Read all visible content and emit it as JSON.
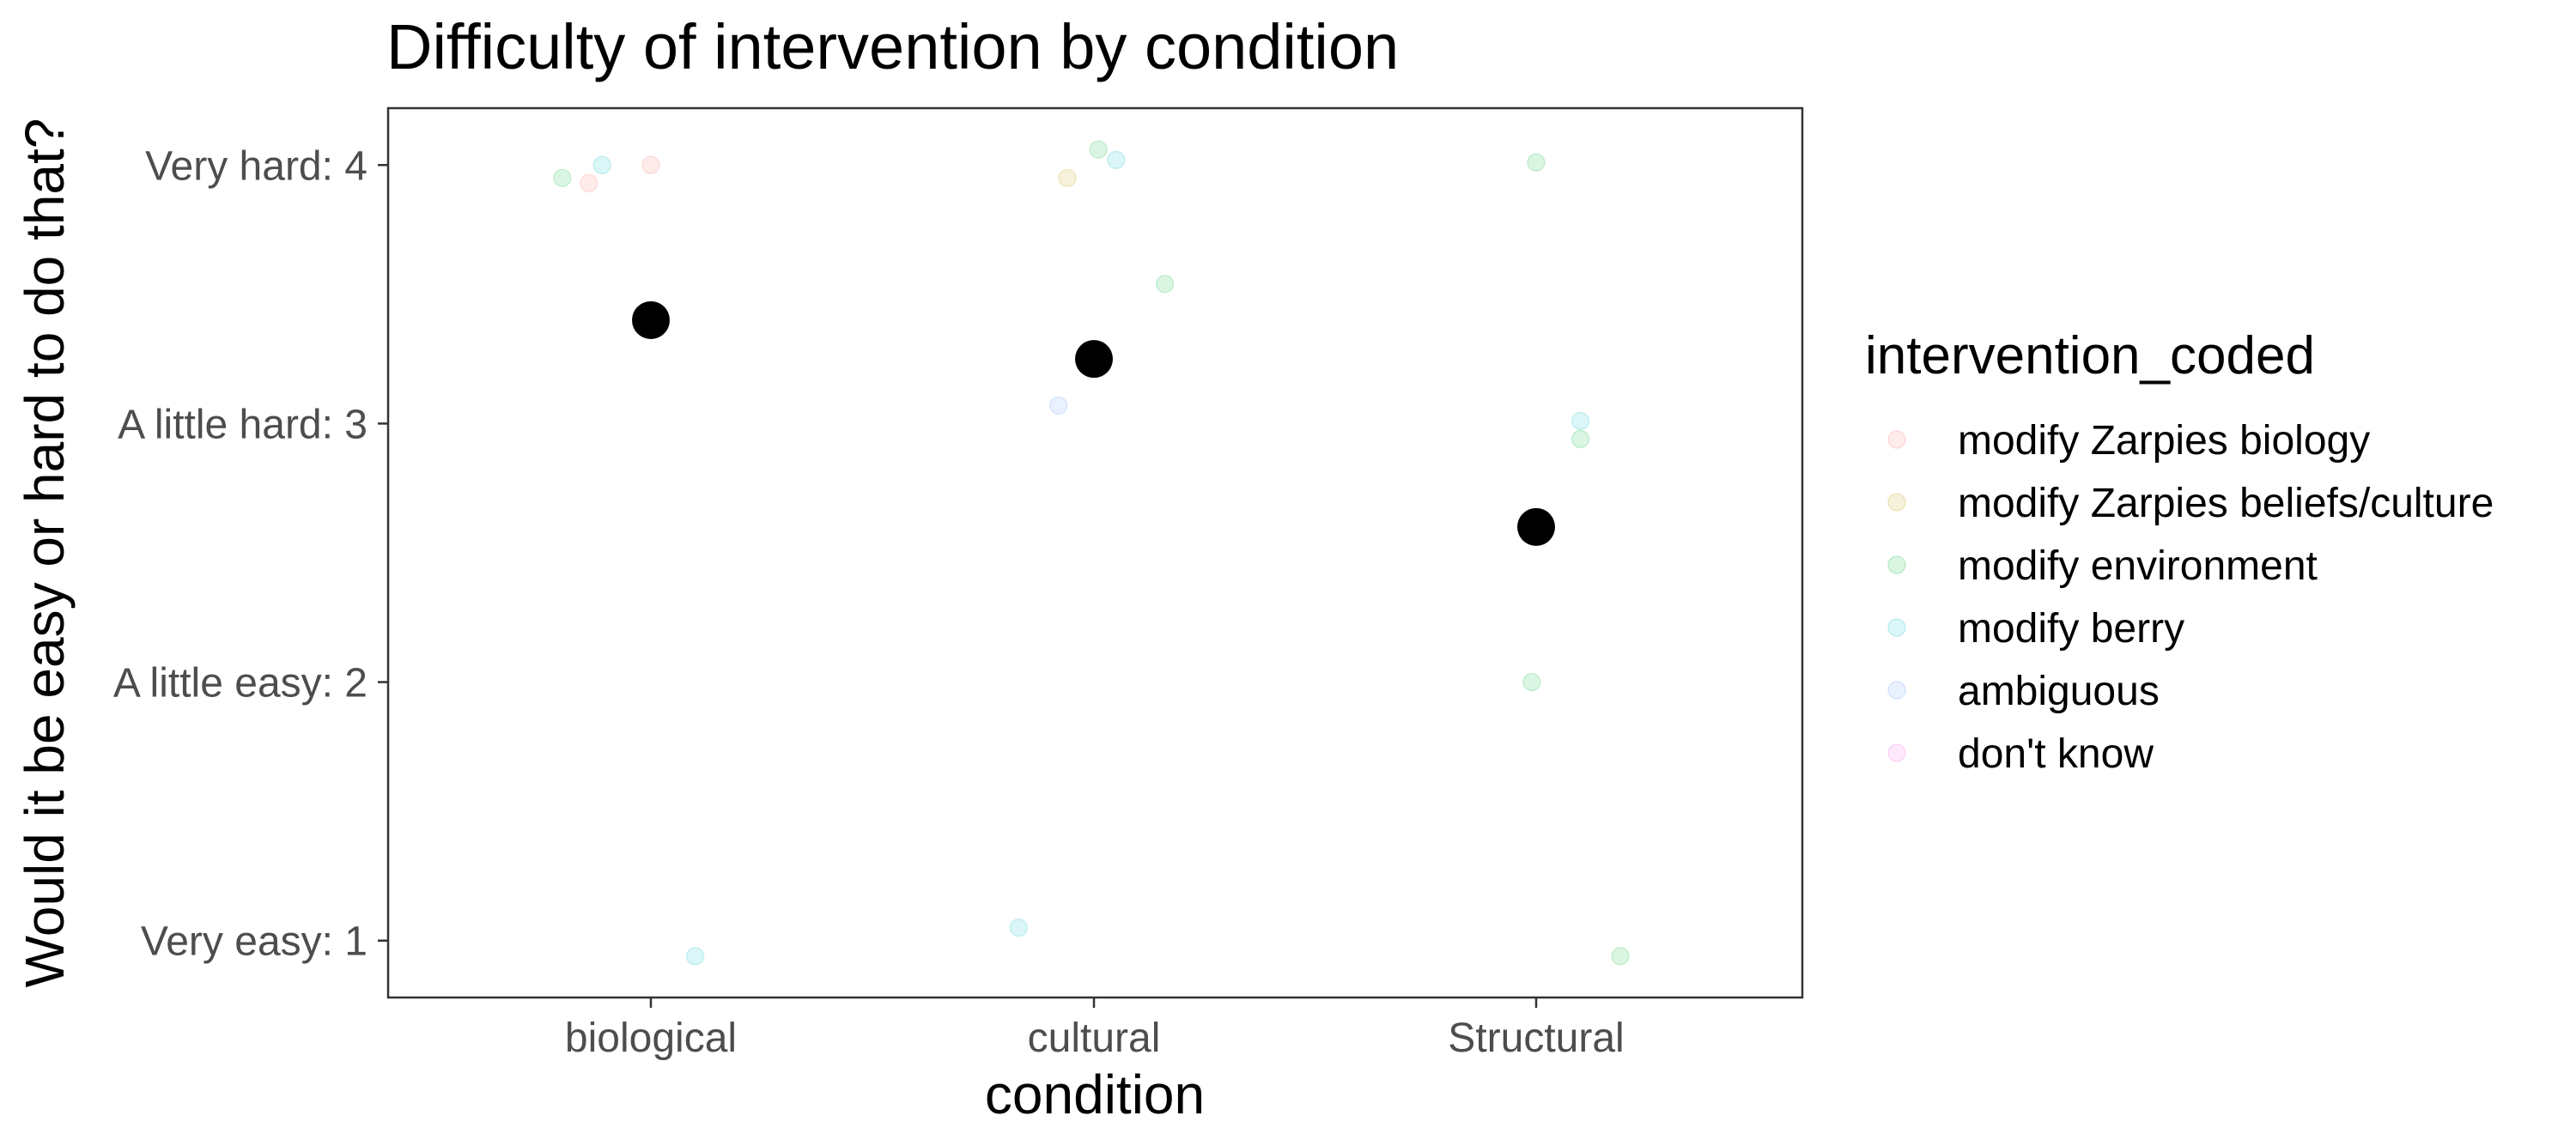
{
  "chart_data": {
    "type": "scatter",
    "title": "Difficulty of intervention by condition",
    "xlabel": "condition",
    "ylabel": "Would it be easy or hard to do that?",
    "categories": [
      "biological",
      "cultural",
      "Structural"
    ],
    "y_ticks": [
      {
        "value": 1,
        "label": "Very easy: 1"
      },
      {
        "value": 2,
        "label": "A little easy: 2"
      },
      {
        "value": 3,
        "label": "A little hard: 3"
      },
      {
        "value": 4,
        "label": "Very hard: 4"
      }
    ],
    "ylim": [
      0.78,
      4.22
    ],
    "grid": false,
    "legend": {
      "title": "intervention_coded",
      "position": "right",
      "entries": [
        {
          "label": "modify Zarpies biology",
          "color": "#F8766D"
        },
        {
          "label": "modify Zarpies beliefs/culture",
          "color": "#B79F00"
        },
        {
          "label": "modify environment",
          "color": "#00BA38"
        },
        {
          "label": "modify berry",
          "color": "#00BFC4"
        },
        {
          "label": "ambiguous",
          "color": "#619CFF"
        },
        {
          "label": "don't know",
          "color": "#F564E3"
        }
      ]
    },
    "points": [
      {
        "category": "biological",
        "jitter": -0.2,
        "y": 3.95,
        "group": "modify environment"
      },
      {
        "category": "biological",
        "jitter": -0.11,
        "y": 4.0,
        "group": "modify berry"
      },
      {
        "category": "biological",
        "jitter": -0.14,
        "y": 3.93,
        "group": "modify Zarpies biology"
      },
      {
        "category": "biological",
        "jitter": 0.0,
        "y": 4.0,
        "group": "modify Zarpies biology"
      },
      {
        "category": "biological",
        "jitter": 0.1,
        "y": 0.94,
        "group": "modify berry"
      },
      {
        "category": "cultural",
        "jitter": -0.06,
        "y": 3.95,
        "group": "modify Zarpies beliefs/culture"
      },
      {
        "category": "cultural",
        "jitter": 0.01,
        "y": 4.06,
        "group": "modify environment"
      },
      {
        "category": "cultural",
        "jitter": 0.05,
        "y": 4.02,
        "group": "modify berry"
      },
      {
        "category": "cultural",
        "jitter": 0.16,
        "y": 3.54,
        "group": "modify environment"
      },
      {
        "category": "cultural",
        "jitter": -0.08,
        "y": 3.07,
        "group": "ambiguous"
      },
      {
        "category": "cultural",
        "jitter": -0.17,
        "y": 1.05,
        "group": "modify berry"
      },
      {
        "category": "Structural",
        "jitter": 0.0,
        "y": 4.01,
        "group": "modify environment"
      },
      {
        "category": "Structural",
        "jitter": 0.1,
        "y": 3.01,
        "group": "modify berry"
      },
      {
        "category": "Structural",
        "jitter": 0.1,
        "y": 2.94,
        "group": "modify environment"
      },
      {
        "category": "Structural",
        "jitter": -0.01,
        "y": 2.0,
        "group": "modify environment"
      },
      {
        "category": "Structural",
        "jitter": 0.19,
        "y": 0.94,
        "group": "modify environment"
      }
    ],
    "means": [
      {
        "category": "biological",
        "y": 3.4
      },
      {
        "category": "cultural",
        "y": 3.25
      },
      {
        "category": "Structural",
        "y": 2.6
      }
    ]
  }
}
